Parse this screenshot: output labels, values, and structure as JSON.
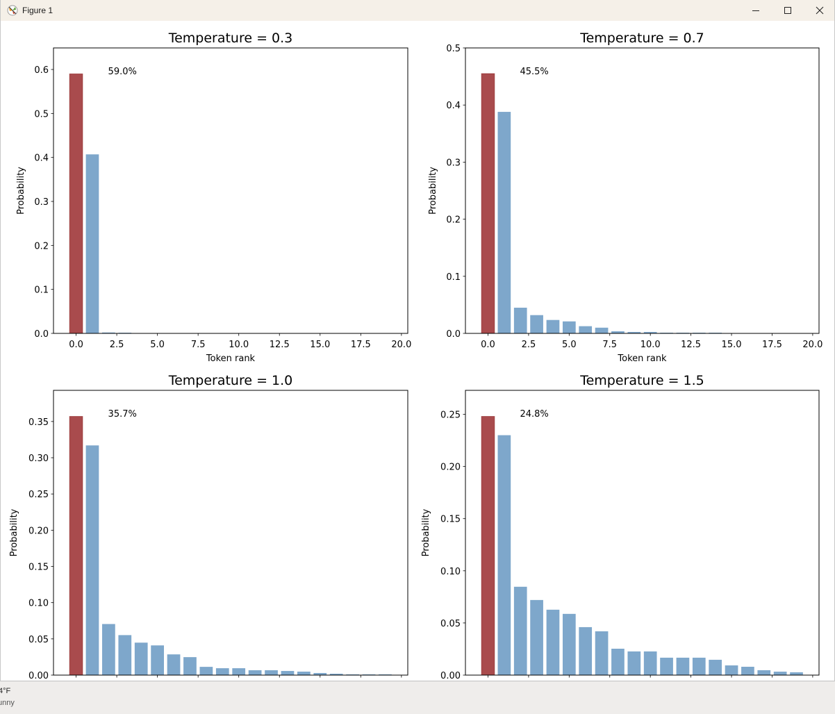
{
  "window": {
    "title": "Figure 1",
    "icon": "matplotlib-figure-icon",
    "controls": {
      "minimize": "minimize-icon",
      "maximize": "maximize-icon",
      "close": "close-icon"
    }
  },
  "taskbar": {
    "weather_temp": "4°F",
    "weather_condition": "unny"
  },
  "colors": {
    "top_bar": "#a94b4d",
    "top_bar_edge": "#8b1a1a",
    "other_bars": "#7ea7cb",
    "axes": "#000000"
  },
  "chart_data": [
    {
      "type": "bar",
      "title": "Temperature = 0.3",
      "xlabel": "Token rank",
      "ylabel": "Probability",
      "x": [
        0,
        1,
        2,
        3,
        4,
        5,
        6,
        7,
        8,
        9,
        10,
        11,
        12,
        13,
        14,
        15,
        16,
        17,
        18,
        19
      ],
      "values": [
        0.59,
        0.407,
        0.002,
        0.0015,
        0,
        0,
        0,
        0,
        0,
        0,
        0,
        0,
        0,
        0,
        0,
        0,
        0,
        0,
        0,
        0
      ],
      "highlight_index": 0,
      "annotation": "59.0%",
      "xlim": [
        -1.39,
        20.39
      ],
      "ylim": [
        0,
        0.649
      ],
      "xticks": [
        "0.0",
        "2.5",
        "5.0",
        "7.5",
        "10.0",
        "12.5",
        "15.0",
        "17.5",
        "20.0"
      ],
      "xtick_values": [
        0,
        2.5,
        5,
        7.5,
        10,
        12.5,
        15,
        17.5,
        20
      ],
      "yticks": [
        "0.0",
        "0.1",
        "0.2",
        "0.3",
        "0.4",
        "0.5",
        "0.6"
      ],
      "ytick_values": [
        0,
        0.1,
        0.2,
        0.3,
        0.4,
        0.5,
        0.6
      ],
      "show_xtick_labels": true,
      "grid": false
    },
    {
      "type": "bar",
      "title": "Temperature = 0.7",
      "xlabel": "Token rank",
      "ylabel": "Probability",
      "x": [
        0,
        1,
        2,
        3,
        4,
        5,
        6,
        7,
        8,
        9,
        10,
        11,
        12,
        13,
        14,
        15,
        16,
        17,
        18,
        19
      ],
      "values": [
        0.455,
        0.388,
        0.045,
        0.032,
        0.0235,
        0.021,
        0.0126,
        0.01,
        0.0037,
        0.0025,
        0.0025,
        0.0012,
        0.0012,
        0.0012,
        0.0012,
        0,
        0,
        0,
        0,
        0
      ],
      "highlight_index": 0,
      "annotation": "45.5%",
      "xlim": [
        -1.39,
        20.39
      ],
      "ylim": [
        0,
        0.5
      ],
      "xticks": [
        "0.0",
        "2.5",
        "5.0",
        "7.5",
        "10.0",
        "12.5",
        "15.0",
        "17.5",
        "20.0"
      ],
      "xtick_values": [
        0,
        2.5,
        5,
        7.5,
        10,
        12.5,
        15,
        17.5,
        20
      ],
      "yticks": [
        "0.0",
        "0.1",
        "0.2",
        "0.3",
        "0.4",
        "0.5"
      ],
      "ytick_values": [
        0,
        0.1,
        0.2,
        0.3,
        0.4,
        0.5
      ],
      "show_xtick_labels": true,
      "grid": false
    },
    {
      "type": "bar",
      "title": "Temperature = 1.0",
      "xlabel": "",
      "ylabel": "Probability",
      "x": [
        0,
        1,
        2,
        3,
        4,
        5,
        6,
        7,
        8,
        9,
        10,
        11,
        12,
        13,
        14,
        15,
        16,
        17,
        18,
        19
      ],
      "values": [
        0.357,
        0.317,
        0.0705,
        0.0552,
        0.0448,
        0.041,
        0.0286,
        0.0248,
        0.0114,
        0.0095,
        0.0095,
        0.0067,
        0.0067,
        0.0057,
        0.0048,
        0.0029,
        0.0019,
        0.001,
        0.001,
        0.001
      ],
      "highlight_index": 0,
      "annotation": "35.7%",
      "xlim": [
        -1.39,
        20.39
      ],
      "ylim": [
        0,
        0.393
      ],
      "xticks": [],
      "xtick_values": [
        0,
        2.5,
        5,
        7.5,
        10,
        12.5,
        15,
        17.5,
        20
      ],
      "yticks": [
        "0.00",
        "0.05",
        "0.10",
        "0.15",
        "0.20",
        "0.25",
        "0.30",
        "0.35"
      ],
      "ytick_values": [
        0,
        0.05,
        0.1,
        0.15,
        0.2,
        0.25,
        0.3,
        0.35
      ],
      "show_xtick_labels": false,
      "grid": false
    },
    {
      "type": "bar",
      "title": "Temperature = 1.5",
      "xlabel": "",
      "ylabel": "Probability",
      "x": [
        0,
        1,
        2,
        3,
        4,
        5,
        6,
        7,
        8,
        9,
        10,
        11,
        12,
        13,
        14,
        15,
        16,
        17,
        18,
        19
      ],
      "values": [
        0.248,
        0.23,
        0.0847,
        0.072,
        0.0627,
        0.0587,
        0.046,
        0.042,
        0.0253,
        0.0227,
        0.0227,
        0.0167,
        0.0167,
        0.0167,
        0.0147,
        0.0093,
        0.008,
        0.0047,
        0.0033,
        0.0027
      ],
      "highlight_index": 0,
      "annotation": "24.8%",
      "xlim": [
        -1.39,
        20.39
      ],
      "ylim": [
        0,
        0.273
      ],
      "xticks": [],
      "xtick_values": [
        0,
        2.5,
        5,
        7.5,
        10,
        12.5,
        15,
        17.5,
        20
      ],
      "yticks": [
        "0.00",
        "0.05",
        "0.10",
        "0.15",
        "0.20",
        "0.25"
      ],
      "ytick_values": [
        0,
        0.05,
        0.1,
        0.15,
        0.2,
        0.25
      ],
      "show_xtick_labels": false,
      "grid": false
    }
  ]
}
